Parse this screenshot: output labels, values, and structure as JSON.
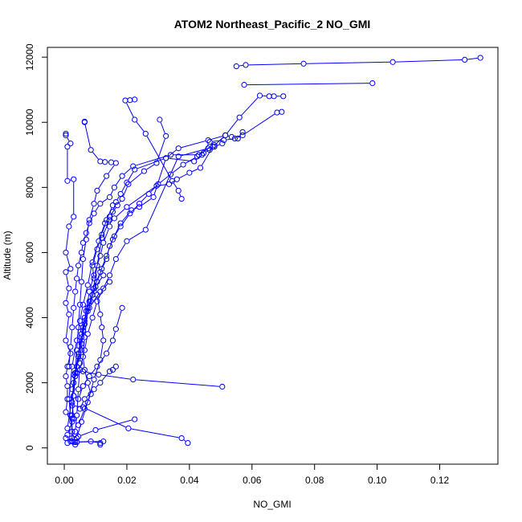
{
  "chart_data": {
    "type": "line",
    "title": "ATOM2 Northeast_Pacific_2 NO_GMI",
    "xlabel": "NO_GMI",
    "ylabel": "Altitude (m)",
    "xlim": [
      -0.0054,
      0.1386
    ],
    "ylim": [
      -500,
      12300
    ],
    "xticks": [
      0.0,
      0.02,
      0.04,
      0.06,
      0.08,
      0.1,
      0.12
    ],
    "xtick_labels": [
      "0.00",
      "0.02",
      "0.04",
      "0.06",
      "0.08",
      "0.10",
      "0.12"
    ],
    "yticks": [
      0,
      2000,
      4000,
      6000,
      8000,
      10000,
      12000
    ],
    "ytick_labels": [
      "0",
      "2000",
      "4000",
      "6000",
      "8000",
      "10000",
      "12000"
    ],
    "marker": "open-circle",
    "color": "#0000ff",
    "grid": false,
    "legend": "none",
    "series": [
      {
        "points": [
          [
            0.133,
            11980
          ],
          [
            0.128,
            11920
          ],
          [
            0.105,
            11850
          ],
          [
            0.0765,
            11800
          ],
          [
            0.058,
            11760
          ],
          [
            0.055,
            11720
          ]
        ]
      },
      {
        "points": [
          [
            0.0985,
            11200
          ],
          [
            0.0575,
            11150
          ]
        ]
      },
      {
        "points": [
          [
            0.07,
            10800
          ],
          [
            0.067,
            10800
          ],
          [
            0.0655,
            10800
          ],
          [
            0.0625,
            10820
          ],
          [
            0.056,
            10150
          ],
          [
            0.0515,
            9600
          ],
          [
            0.0475,
            9250
          ],
          [
            0.0435,
            8600
          ],
          [
            0.04,
            8450
          ],
          [
            0.036,
            8250
          ],
          [
            0.0335,
            8100
          ],
          [
            0.0295,
            8050
          ],
          [
            0.02,
            7400
          ],
          [
            0.016,
            7050
          ],
          [
            0.0145,
            7000
          ],
          [
            0.012,
            6450
          ],
          [
            0.0105,
            5600
          ],
          [
            0.009,
            4700
          ],
          [
            0.006,
            3600
          ],
          [
            0.0035,
            2200
          ],
          [
            0.001,
            600
          ]
        ]
      },
      {
        "points": [
          [
            0.0225,
            10700
          ],
          [
            0.021,
            10680
          ],
          [
            0.0195,
            10670
          ],
          [
            0.0225,
            10080
          ],
          [
            0.026,
            9650
          ],
          [
            0.0345,
            8200
          ],
          [
            0.0365,
            7900
          ],
          [
            0.0375,
            7650
          ]
        ]
      },
      {
        "points": [
          [
            0.0305,
            10080
          ],
          [
            0.0325,
            9580
          ],
          [
            0.0295,
            8750
          ],
          [
            0.0255,
            8500
          ],
          [
            0.0205,
            8100
          ],
          [
            0.0185,
            7650
          ],
          [
            0.017,
            7450
          ],
          [
            0.0145,
            7100
          ],
          [
            0.013,
            6900
          ],
          [
            0.011,
            6350
          ],
          [
            0.009,
            5700
          ],
          [
            0.0075,
            5000
          ],
          [
            0.006,
            4400
          ],
          [
            0.005,
            3900
          ],
          [
            0.004,
            3300
          ],
          [
            0.0025,
            2500
          ],
          [
            0.0015,
            1500
          ],
          [
            0.002,
            1000
          ],
          [
            0.0025,
            500
          ],
          [
            0.0035,
            180
          ]
        ]
      },
      {
        "points": [
          [
            0.0695,
            10320
          ],
          [
            0.068,
            10300
          ],
          [
            0.057,
            9600
          ],
          [
            0.0545,
            9500
          ],
          [
            0.051,
            9450
          ],
          [
            0.0465,
            9400
          ],
          [
            0.044,
            9000
          ],
          [
            0.0415,
            8800
          ],
          [
            0.0325,
            8900
          ],
          [
            0.0225,
            8550
          ],
          [
            0.02,
            8150
          ],
          [
            0.018,
            7800
          ],
          [
            0.0165,
            7550
          ],
          [
            0.0155,
            7250
          ],
          [
            0.0145,
            6800
          ],
          [
            0.0125,
            6300
          ],
          [
            0.0115,
            5900
          ],
          [
            0.0095,
            5300
          ],
          [
            0.008,
            4800
          ],
          [
            0.007,
            4200
          ],
          [
            0.006,
            3700
          ],
          [
            0.0055,
            3000
          ],
          [
            0.004,
            2500
          ],
          [
            0.003,
            2000
          ],
          [
            0.0025,
            1400
          ],
          [
            0.003,
            900
          ]
        ]
      },
      {
        "points": [
          [
            0.057,
            9700
          ],
          [
            0.0555,
            9500
          ],
          [
            0.0535,
            9550
          ],
          [
            0.0515,
            9600
          ],
          [
            0.046,
            9450
          ],
          [
            0.0365,
            9200
          ],
          [
            0.0325,
            8900
          ],
          [
            0.0285,
            7700
          ],
          [
            0.024,
            7400
          ],
          [
            0.0215,
            7300
          ],
          [
            0.018,
            6900
          ],
          [
            0.0155,
            6400
          ],
          [
            0.0135,
            5900
          ],
          [
            0.0115,
            5400
          ],
          [
            0.0095,
            4900
          ],
          [
            0.008,
            4500
          ],
          [
            0.0065,
            4000
          ],
          [
            0.0055,
            3500
          ],
          [
            0.0045,
            2900
          ],
          [
            0.0035,
            2300
          ],
          [
            0.0025,
            1800
          ]
        ]
      },
      {
        "points": [
          [
            0.048,
            9300
          ],
          [
            0.0465,
            9150
          ],
          [
            0.0445,
            9050
          ],
          [
            0.043,
            9000
          ],
          [
            0.034,
            9000
          ],
          [
            0.022,
            8650
          ],
          [
            0.0185,
            8350
          ],
          [
            0.016,
            8000
          ],
          [
            0.0145,
            7700
          ],
          [
            0.0115,
            7500
          ],
          [
            0.0095,
            7200
          ],
          [
            0.008,
            6900
          ],
          [
            0.007,
            6600
          ],
          [
            0.006,
            6300
          ],
          [
            0.0055,
            6000
          ],
          [
            0.0045,
            5600
          ],
          [
            0.004,
            5200
          ],
          [
            0.0035,
            4800
          ],
          [
            0.003,
            4300
          ],
          [
            0.0025,
            3700
          ],
          [
            0.002,
            3100
          ],
          [
            0.0015,
            2500
          ]
        ]
      },
      {
        "points": [
          [
            0.046,
            9200
          ],
          [
            0.0425,
            8950
          ],
          [
            0.038,
            8700
          ],
          [
            0.034,
            8400
          ],
          [
            0.03,
            8100
          ],
          [
            0.027,
            7800
          ],
          [
            0.024,
            7500
          ],
          [
            0.021,
            7200
          ],
          [
            0.018,
            6800
          ],
          [
            0.016,
            6500
          ],
          [
            0.0145,
            6200
          ],
          [
            0.0135,
            5800
          ],
          [
            0.012,
            5500
          ],
          [
            0.0105,
            5100
          ],
          [
            0.009,
            4700
          ],
          [
            0.0075,
            4300
          ],
          [
            0.0065,
            3900
          ],
          [
            0.0055,
            3400
          ],
          [
            0.0045,
            2800
          ],
          [
            0.0035,
            2200
          ],
          [
            0.003,
            1600
          ],
          [
            0.0025,
            1000
          ]
        ]
      },
      {
        "points": [
          [
            0.0505,
            9350
          ],
          [
            0.048,
            9250
          ],
          [
            0.0365,
            8950
          ],
          [
            0.026,
            6700
          ],
          [
            0.02,
            6350
          ],
          [
            0.0165,
            5800
          ],
          [
            0.0145,
            5300
          ],
          [
            0.0125,
            4900
          ],
          [
            0.0105,
            4500
          ],
          [
            0.009,
            4000
          ],
          [
            0.0075,
            3500
          ],
          [
            0.0065,
            3000
          ],
          [
            0.005,
            2400
          ]
        ]
      },
      {
        "points": [
          [
            0.0065,
            10020
          ],
          [
            0.0065,
            10000
          ],
          [
            0.0085,
            9150
          ],
          [
            0.0115,
            8800
          ],
          [
            0.013,
            8780
          ],
          [
            0.015,
            8770
          ],
          [
            0.0165,
            8750
          ],
          [
            0.0135,
            8350
          ],
          [
            0.0105,
            7900
          ],
          [
            0.0095,
            7500
          ],
          [
            0.008,
            7000
          ],
          [
            0.007,
            6400
          ],
          [
            0.006,
            5800
          ],
          [
            0.0055,
            5100
          ],
          [
            0.005,
            4400
          ],
          [
            0.0045,
            3700
          ],
          [
            0.004,
            3000
          ],
          [
            0.0035,
            2300
          ],
          [
            0.003,
            1600
          ],
          [
            0.0025,
            900
          ],
          [
            0.0025,
            200
          ],
          [
            0.004,
            180
          ],
          [
            0.0125,
            200
          ],
          [
            0.0115,
            100
          ]
        ]
      },
      {
        "points": [
          [
            0.0005,
            9650
          ],
          [
            0.0005,
            9600
          ],
          [
            0.002,
            9350
          ],
          [
            0.001,
            9250
          ],
          [
            0.001,
            8200
          ],
          [
            0.003,
            8250
          ],
          [
            0.003,
            7100
          ],
          [
            0.0015,
            6800
          ],
          [
            0.0005,
            6000
          ],
          [
            0.002,
            5500
          ],
          [
            0.0005,
            5400
          ],
          [
            0.0015,
            4900
          ],
          [
            0.0005,
            4450
          ],
          [
            0.0015,
            4100
          ],
          [
            0.0005,
            3300
          ],
          [
            0.002,
            2900
          ],
          [
            0.001,
            2500
          ],
          [
            0.0005,
            2200
          ],
          [
            0.001,
            1900
          ],
          [
            0.001,
            1500
          ],
          [
            0.0005,
            1100
          ],
          [
            0.0025,
            800
          ],
          [
            0.001,
            400
          ],
          [
            0.0005,
            300
          ],
          [
            0.003,
            180
          ],
          [
            0.0035,
            100
          ]
        ]
      },
      {
        "points": [
          [
            0.0145,
            5100
          ],
          [
            0.0115,
            4800
          ],
          [
            0.008,
            4300
          ],
          [
            0.0065,
            3800
          ],
          [
            0.0055,
            3200
          ],
          [
            0.005,
            2600
          ],
          [
            0.0045,
            1800
          ],
          [
            0.004,
            1000
          ],
          [
            0.0035,
            500
          ]
        ]
      },
      {
        "points": [
          [
            0.0125,
            5300
          ],
          [
            0.01,
            4950
          ],
          [
            0.0085,
            4500
          ],
          [
            0.0075,
            4200
          ],
          [
            0.0065,
            3400
          ],
          [
            0.006,
            2800
          ],
          [
            0.0065,
            2400
          ],
          [
            0.0075,
            2000
          ],
          [
            0.0085,
            1650
          ],
          [
            0.0065,
            1200
          ],
          [
            0.0045,
            700
          ]
        ]
      },
      {
        "points": [
          [
            0.0155,
            7450
          ],
          [
            0.0135,
            7000
          ],
          [
            0.012,
            6550
          ],
          [
            0.0105,
            6100
          ],
          [
            0.009,
            5600
          ],
          [
            0.0095,
            5200
          ],
          [
            0.0105,
            4700
          ],
          [
            0.0115,
            4100
          ],
          [
            0.012,
            3700
          ],
          [
            0.0125,
            3300
          ],
          [
            0.0115,
            2700
          ],
          [
            0.0095,
            2100
          ],
          [
            0.0075,
            1400
          ],
          [
            0.0055,
            800
          ],
          [
            0.004,
            300
          ]
        ]
      },
      {
        "points": [
          [
            0.0185,
            4300
          ],
          [
            0.0165,
            3650
          ],
          [
            0.0155,
            3300
          ],
          [
            0.0135,
            2900
          ],
          [
            0.0105,
            2500
          ],
          [
            0.008,
            2200
          ],
          [
            0.006,
            1900
          ],
          [
            0.0045,
            1500
          ]
        ]
      },
      {
        "points": [
          [
            0.0165,
            2500
          ],
          [
            0.0155,
            2400
          ],
          [
            0.0145,
            2350
          ],
          [
            0.0115,
            2000
          ],
          [
            0.0095,
            1800
          ],
          [
            0.0065,
            1500
          ],
          [
            0.005,
            1200
          ]
        ]
      },
      {
        "points": [
          [
            0.0505,
            1880
          ],
          [
            0.022,
            2100
          ],
          [
            0.011,
            2250
          ],
          [
            0.006,
            2350
          ],
          [
            0.004,
            2300
          ],
          [
            0.003,
            2250
          ]
        ]
      },
      {
        "points": [
          [
            0.0395,
            150
          ],
          [
            0.0375,
            300
          ],
          [
            0.0205,
            600
          ],
          [
            0.006,
            1250
          ],
          [
            0.0025,
            1300
          ]
        ]
      },
      {
        "points": [
          [
            0.0225,
            880
          ],
          [
            0.01,
            550
          ],
          [
            0.0045,
            350
          ],
          [
            0.0025,
            300
          ]
        ]
      },
      {
        "points": [
          [
            0.0115,
            150
          ],
          [
            0.0085,
            200
          ],
          [
            0.004,
            180
          ],
          [
            0.002,
            200
          ],
          [
            0.001,
            150
          ]
        ]
      }
    ]
  }
}
